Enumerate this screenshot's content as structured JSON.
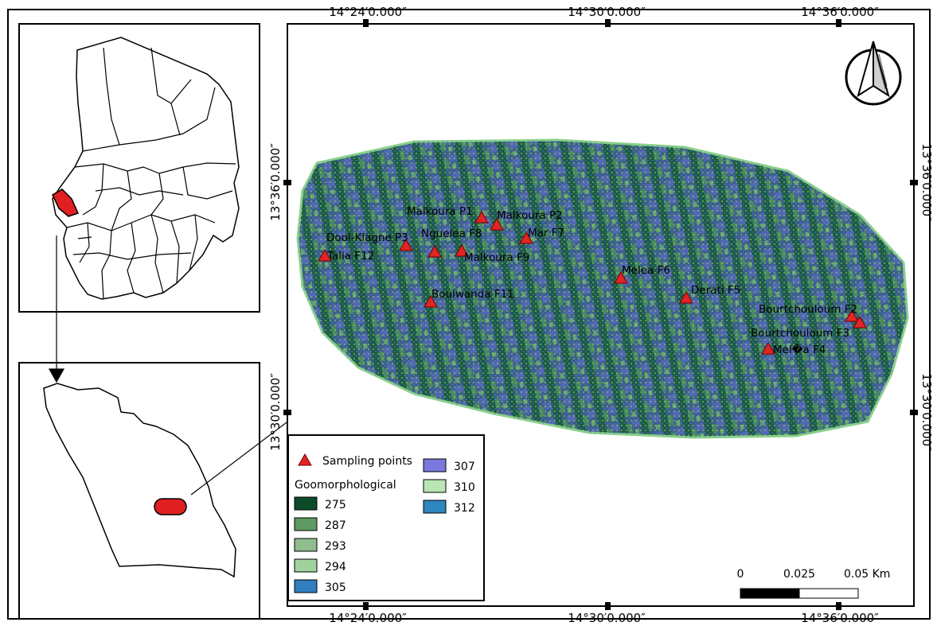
{
  "map": {
    "coordinate_labels": {
      "top": [
        "14°24′0.000″",
        "14°30′0.000″",
        "14°36′0.000″"
      ],
      "bottom": [
        "14°24′0.000″",
        "14°30′0.000″",
        "14°36′0.000″"
      ],
      "left": [
        "13°36′0.000″",
        "13°30′0.000″"
      ],
      "right": [
        "13°36′0.000″",
        "13°30′0.000″"
      ]
    },
    "sampling_points": [
      {
        "label": "Malkoura P1"
      },
      {
        "label": "Malkoura P2"
      },
      {
        "label": "Mar F7"
      },
      {
        "label": "Dool-Klagne P3"
      },
      {
        "label": "Nguelea F8"
      },
      {
        "label": "Talia F12"
      },
      {
        "label": "Malkoura F9"
      },
      {
        "label": "Melea F6"
      },
      {
        "label": "Boulwanda F11"
      },
      {
        "label": "Derati F5"
      },
      {
        "label": "Bourtchouloum F2"
      },
      {
        "label": "Bourtchouloum F3"
      },
      {
        "label": "Mel�a F4"
      }
    ],
    "legend": {
      "points_label": "Sampling points",
      "class_title": "Goomorphological",
      "classes": [
        {
          "value": "275",
          "color": "#0c4a2a"
        },
        {
          "value": "287",
          "color": "#5e9a63"
        },
        {
          "value": "293",
          "color": "#8fbd90"
        },
        {
          "value": "294",
          "color": "#9fd39b"
        },
        {
          "value": "305",
          "color": "#2f7fc1"
        },
        {
          "value": "307",
          "color": "#7a78dc"
        },
        {
          "value": "310",
          "color": "#b9e6b3"
        },
        {
          "value": "312",
          "color": "#2e86c0"
        }
      ]
    },
    "scale_bar": {
      "labels": [
        "0",
        "0.025",
        "0.05 Km"
      ]
    },
    "marker_color": "#e02525",
    "highlight_color": "#e02020"
  }
}
